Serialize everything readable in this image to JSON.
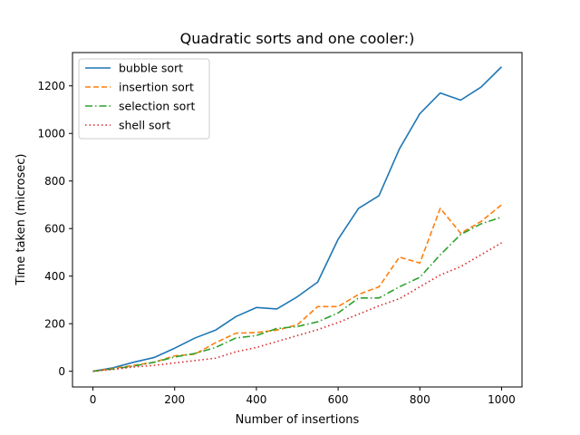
{
  "chart_data": {
    "type": "line",
    "title": "Quadratic sorts and one cooler:)",
    "xlabel": "Number of insertions",
    "ylabel": "Time taken (microsec)",
    "xlim": [
      -50,
      1050
    ],
    "ylim": [
      -66,
      1340
    ],
    "x_ticks": [
      0,
      200,
      400,
      600,
      800,
      1000
    ],
    "y_ticks": [
      0,
      200,
      400,
      600,
      800,
      1000,
      1200
    ],
    "grid": false,
    "legend_position": "top-left",
    "x": [
      0,
      50,
      100,
      150,
      200,
      250,
      300,
      350,
      400,
      450,
      500,
      550,
      600,
      650,
      700,
      750,
      800,
      850,
      900,
      950,
      1000
    ],
    "series": [
      {
        "name": "bubble sort",
        "color": "#1f77b4",
        "dash": "solid",
        "values": [
          0,
          15,
          38,
          58,
          97,
          140,
          173,
          230,
          268,
          262,
          313,
          375,
          555,
          685,
          738,
          935,
          1083,
          1170,
          1140,
          1195,
          1280
        ]
      },
      {
        "name": "insertion sort",
        "color": "#ff7f0e",
        "dash": "dashed",
        "values": [
          0,
          12,
          25,
          38,
          65,
          72,
          120,
          160,
          163,
          173,
          195,
          272,
          272,
          323,
          355,
          480,
          455,
          685,
          580,
          630,
          700
        ]
      },
      {
        "name": "selection sort",
        "color": "#2ca02c",
        "dash": "dashdot",
        "values": [
          0,
          10,
          22,
          38,
          60,
          75,
          100,
          140,
          150,
          180,
          188,
          208,
          245,
          308,
          308,
          355,
          395,
          490,
          575,
          620,
          648
        ]
      },
      {
        "name": "shell sort",
        "color": "#d62728",
        "dash": "dotted",
        "values": [
          0,
          8,
          18,
          25,
          35,
          45,
          55,
          82,
          100,
          125,
          150,
          175,
          205,
          240,
          275,
          305,
          355,
          405,
          440,
          490,
          540
        ]
      }
    ]
  }
}
